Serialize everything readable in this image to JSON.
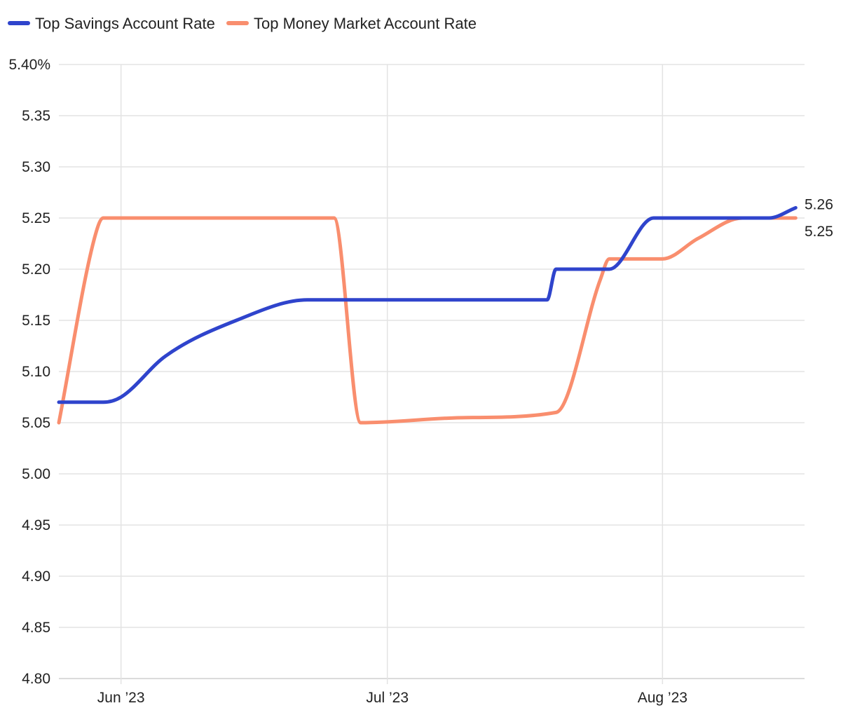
{
  "chart_data": {
    "type": "line",
    "title": "",
    "xlabel": "",
    "ylabel": "",
    "ylim": [
      4.8,
      5.4
    ],
    "y_ticks": [
      "5.40%",
      "5.35",
      "5.30",
      "5.25",
      "5.20",
      "5.15",
      "5.10",
      "5.05",
      "5.00",
      "4.95",
      "4.90",
      "4.85",
      "4.80"
    ],
    "y_tick_values": [
      5.4,
      5.35,
      5.3,
      5.25,
      5.2,
      5.15,
      5.1,
      5.05,
      5.0,
      4.95,
      4.9,
      4.85,
      4.8
    ],
    "xlim": [
      "2023-05-25",
      "2023-08-17"
    ],
    "x_ticks": [
      {
        "label": "Jun ’23",
        "date": "2023-06-01"
      },
      {
        "label": "Jul ’23",
        "date": "2023-07-01"
      },
      {
        "label": "Aug ’23",
        "date": "2023-08-01"
      }
    ],
    "grid": true,
    "legend_position": "top-left",
    "series": [
      {
        "name": "Top Savings Account Rate",
        "color": "#2f44cc",
        "end_label": "5.26",
        "points": [
          [
            "2023-05-25",
            5.07
          ],
          [
            "2023-05-30",
            5.07
          ],
          [
            "2023-06-01",
            5.075
          ],
          [
            "2023-06-06",
            5.115
          ],
          [
            "2023-06-14",
            5.15
          ],
          [
            "2023-06-22",
            5.17
          ],
          [
            "2023-07-10",
            5.17
          ],
          [
            "2023-07-19",
            5.17
          ],
          [
            "2023-07-20",
            5.2
          ],
          [
            "2023-07-26",
            5.2
          ],
          [
            "2023-07-31",
            5.25
          ],
          [
            "2023-08-10",
            5.25
          ],
          [
            "2023-08-13",
            5.25
          ],
          [
            "2023-08-16",
            5.26
          ]
        ]
      },
      {
        "name": "Top Money Market Account Rate",
        "color": "#f98e6e",
        "end_label": "5.25",
        "points": [
          [
            "2023-05-25",
            5.05
          ],
          [
            "2023-05-29",
            5.23
          ],
          [
            "2023-05-30",
            5.25
          ],
          [
            "2023-06-12",
            5.25
          ],
          [
            "2023-06-25",
            5.25
          ],
          [
            "2023-06-28",
            5.05
          ],
          [
            "2023-07-10",
            5.055
          ],
          [
            "2023-07-20",
            5.06
          ],
          [
            "2023-07-25",
            5.19
          ],
          [
            "2023-07-26",
            5.21
          ],
          [
            "2023-08-01",
            5.21
          ],
          [
            "2023-08-05",
            5.23
          ],
          [
            "2023-08-10",
            5.25
          ],
          [
            "2023-08-16",
            5.25
          ]
        ]
      }
    ]
  }
}
